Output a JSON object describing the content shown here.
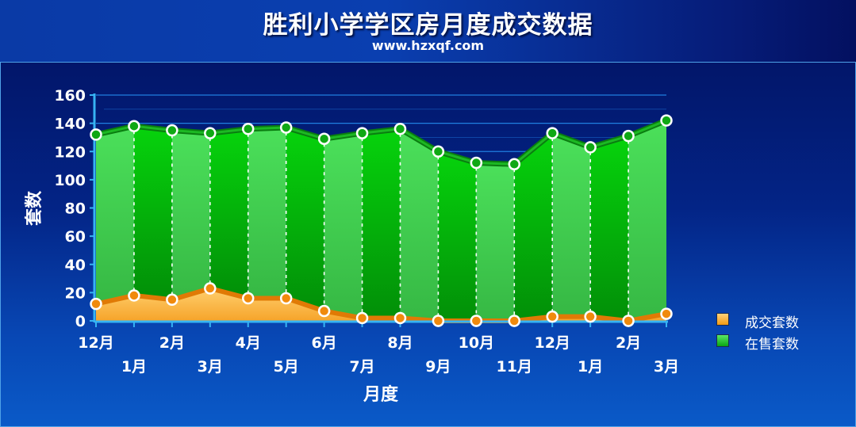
{
  "header": {
    "title": "胜利小学学区房月度成交数据",
    "subtitle": "www.hzxqf.com"
  },
  "chart_data": {
    "type": "area",
    "xlabel": "月度",
    "ylabel": "套数",
    "ylim": [
      0,
      160
    ],
    "yticks": [
      0,
      20,
      40,
      60,
      80,
      100,
      120,
      140,
      160
    ],
    "categories": [
      "12月",
      "1月",
      "2月",
      "3月",
      "4月",
      "5月",
      "6月",
      "7月",
      "8月",
      "9月",
      "10月",
      "11月",
      "12月",
      "1月",
      "2月",
      "3月"
    ],
    "series": [
      {
        "name": "成交套数",
        "values": [
          12,
          18,
          15,
          23,
          16,
          16,
          7,
          2,
          2,
          0,
          0,
          0,
          3,
          3,
          0,
          5
        ]
      },
      {
        "name": "在售套数",
        "values": [
          132,
          138,
          135,
          133,
          136,
          137,
          129,
          133,
          136,
          120,
          112,
          111,
          133,
          123,
          131,
          142
        ]
      }
    ],
    "grid": true,
    "legend_position": "bottom-right"
  },
  "colors": {
    "deal": "#f39a12",
    "sale": "#16c71a",
    "grid": "#1f7fe0",
    "axis": "#36b4f4"
  }
}
